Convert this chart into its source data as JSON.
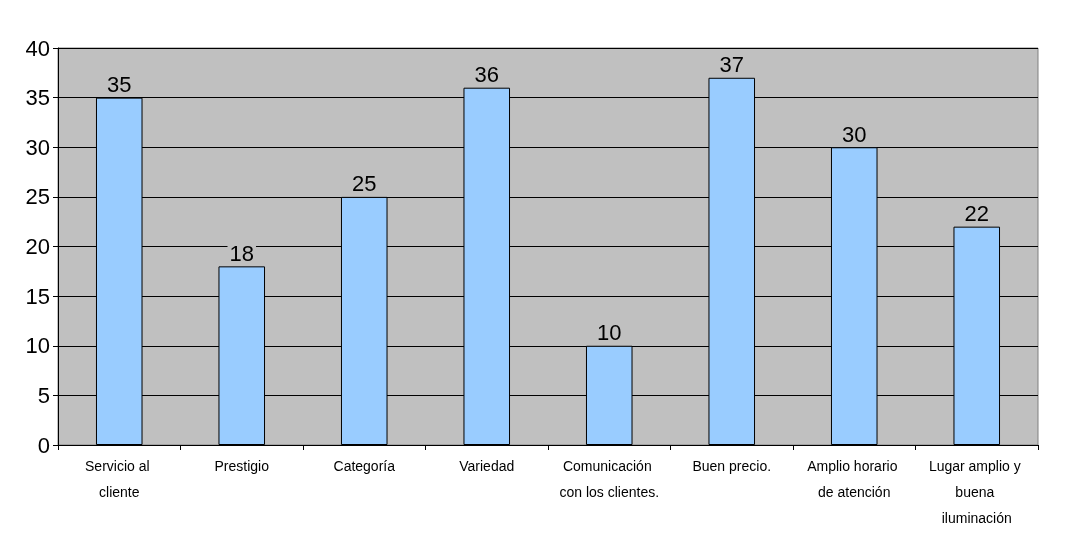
{
  "chart_data": {
    "type": "bar",
    "categories": [
      "Servicio al cliente",
      "Prestigio",
      "Categoría",
      "Variedad",
      "Comunicación con los clientes.",
      "Buen precio.",
      "Amplio horario de atención",
      "Lugar amplio y buena iluminación"
    ],
    "values": [
      35,
      18,
      25,
      36,
      10,
      37,
      30,
      22
    ],
    "color": "#99ccff",
    "ylim": [
      0,
      40
    ],
    "yticks": [
      0,
      5,
      10,
      15,
      20,
      25,
      30,
      35,
      40
    ],
    "grid": "y",
    "data_labels": true
  }
}
